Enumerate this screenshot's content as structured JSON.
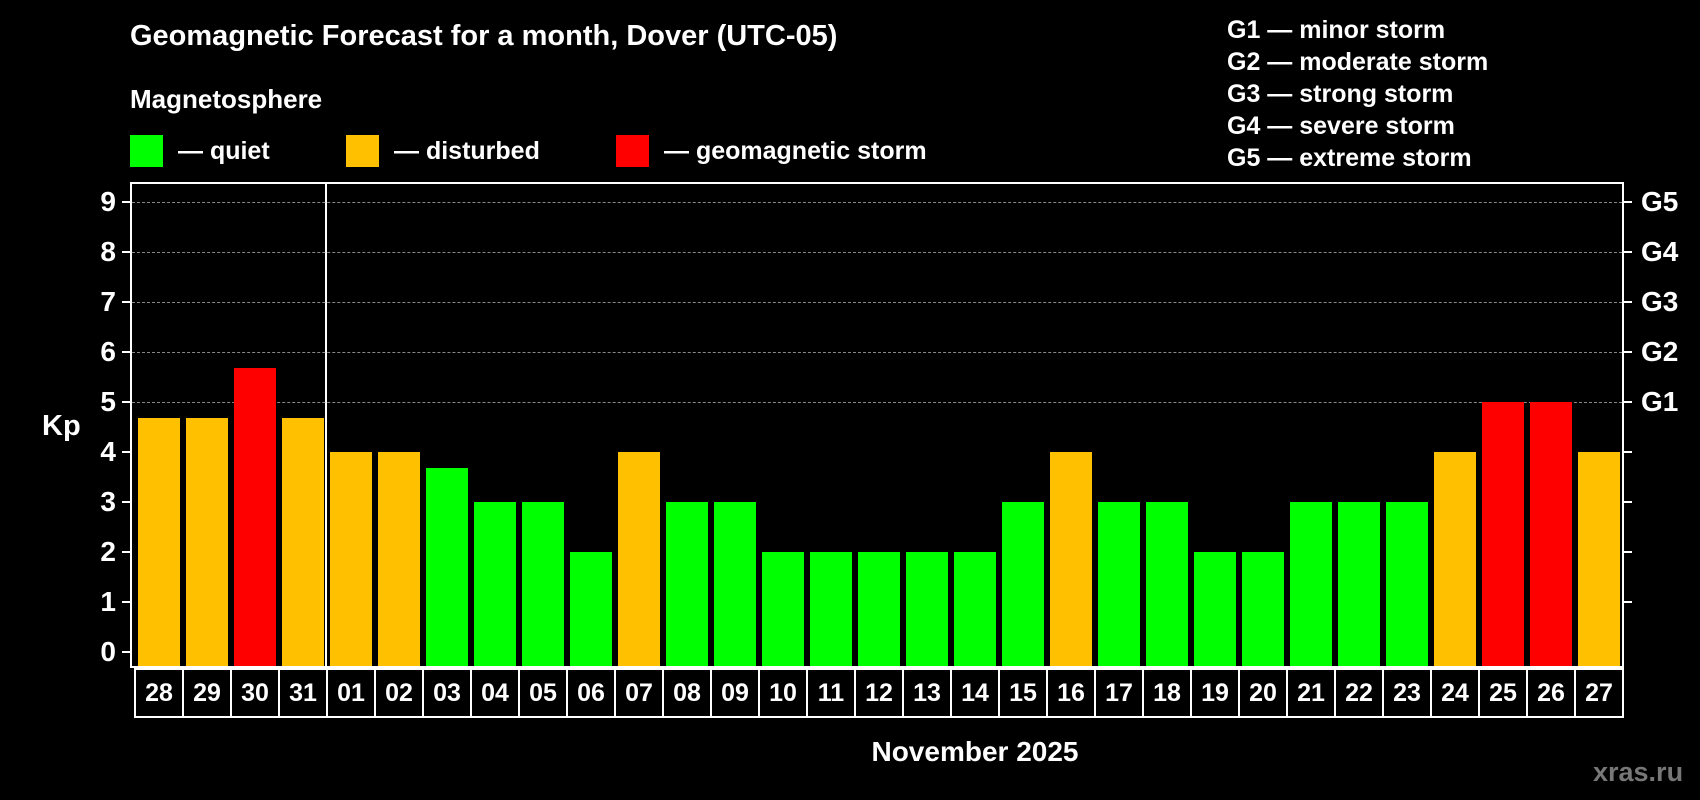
{
  "title": "Geomagnetic Forecast for a month, Dover (UTC-05)",
  "legend": {
    "heading": "Magnetosphere",
    "items": [
      {
        "label": "— quiet",
        "color": "#00ff00"
      },
      {
        "label": "— disturbed",
        "color": "#ffc000"
      },
      {
        "label": "— geomagnetic storm",
        "color": "#ff0000"
      }
    ]
  },
  "g_scale": [
    "G1 — minor storm",
    "G2 — moderate storm",
    "G3 — strong storm",
    "G4 — severe storm",
    "G5 — extreme storm"
  ],
  "watermark": "xras.ru",
  "colors": {
    "quiet": "#00ff00",
    "disturbed": "#ffc000",
    "storm": "#ff0000",
    "grid": "#888888",
    "axis": "#ffffff",
    "background": "#000000"
  },
  "chart_data": {
    "type": "bar",
    "title": "Geomagnetic Forecast for a month, Dover (UTC-05)",
    "xlabel": "November 2025",
    "ylabel": "Kp",
    "ylim": [
      0,
      9
    ],
    "yticks": [
      0,
      1,
      2,
      3,
      4,
      5,
      6,
      7,
      8,
      9
    ],
    "right_axis_labels": [
      {
        "value": 5,
        "label": "G1"
      },
      {
        "value": 6,
        "label": "G2"
      },
      {
        "value": 7,
        "label": "G3"
      },
      {
        "value": 8,
        "label": "G4"
      },
      {
        "value": 9,
        "label": "G5"
      }
    ],
    "grid": "horizontal dashed at 5-9",
    "month_divider_after": "31",
    "categories": [
      "28",
      "29",
      "30",
      "31",
      "01",
      "02",
      "03",
      "04",
      "05",
      "06",
      "07",
      "08",
      "09",
      "10",
      "11",
      "12",
      "13",
      "14",
      "15",
      "16",
      "17",
      "18",
      "19",
      "20",
      "21",
      "22",
      "23",
      "24",
      "25",
      "26",
      "27"
    ],
    "values": [
      4.67,
      4.67,
      5.67,
      4.67,
      4,
      4,
      3.67,
      3,
      3,
      2,
      4,
      3,
      3,
      2,
      2,
      2,
      2,
      2,
      3,
      4,
      3,
      3,
      2,
      2,
      3,
      3,
      3,
      4,
      5,
      5,
      4
    ],
    "status": [
      "disturbed",
      "disturbed",
      "storm",
      "disturbed",
      "disturbed",
      "disturbed",
      "quiet",
      "quiet",
      "quiet",
      "quiet",
      "disturbed",
      "quiet",
      "quiet",
      "quiet",
      "quiet",
      "quiet",
      "quiet",
      "quiet",
      "quiet",
      "disturbed",
      "quiet",
      "quiet",
      "quiet",
      "quiet",
      "quiet",
      "quiet",
      "quiet",
      "disturbed",
      "storm",
      "storm",
      "disturbed"
    ],
    "legend": [
      "quiet",
      "disturbed",
      "geomagnetic storm"
    ]
  }
}
